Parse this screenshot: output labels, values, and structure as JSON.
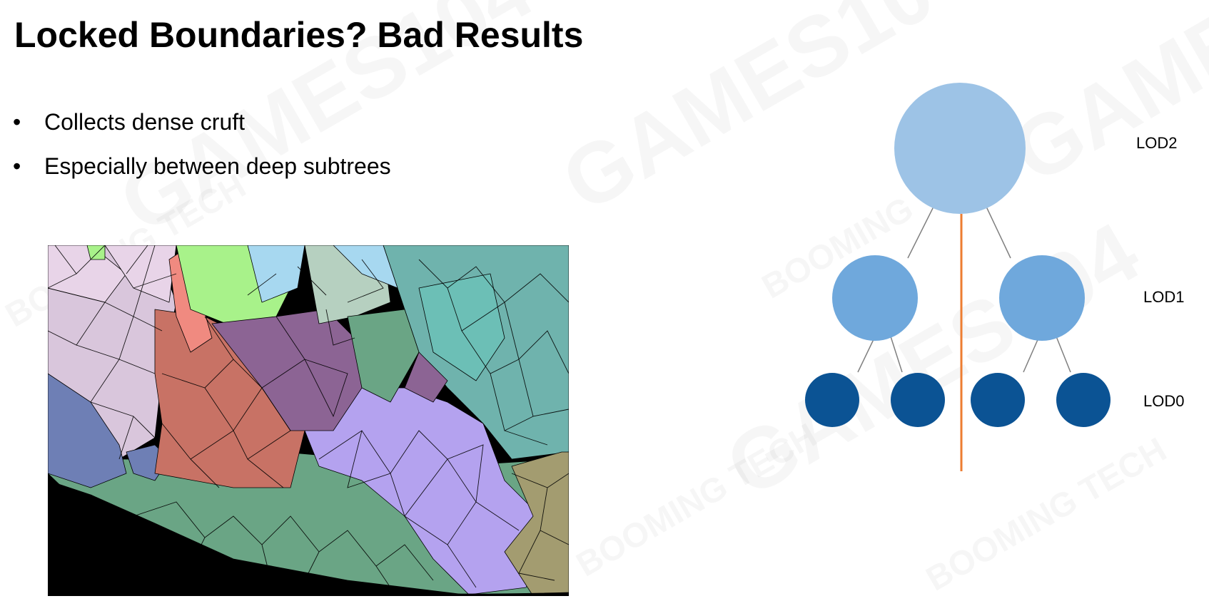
{
  "slide": {
    "title": "Locked Boundaries? Bad Results",
    "bullets": [
      {
        "marker": "•",
        "text": "Collects dense cruft"
      },
      {
        "marker": "•",
        "text": "Especially between deep subtrees"
      }
    ]
  },
  "watermark": {
    "brand": "GAMES104",
    "company": "BOOMING TECH"
  },
  "lod_diagram": {
    "levels": [
      {
        "label": "LOD2",
        "color": "#9dc3e6"
      },
      {
        "label": "LOD1",
        "color": "#6fa8dc"
      },
      {
        "label": "LOD0",
        "color": "#0b5394"
      }
    ],
    "divider_color": "#ed7d31",
    "edge_color": "#7f7f7f"
  },
  "mesh_colors": {
    "lavender_light": "#e8d4e8",
    "lavender": "#d9c6dc",
    "blue": "#6e7fb5",
    "salmon": "#c87265",
    "pink": "#f08a80",
    "green_light": "#a8f28a",
    "purple": "#8c6494",
    "sky": "#a7d8f0",
    "sage": "#b6d0c0",
    "teal": "#6fb3ad",
    "mint": "#6cbfb6",
    "green": "#6aa585",
    "lilac": "#b4a2ef",
    "olive": "#a39c70",
    "black": "#000000"
  }
}
